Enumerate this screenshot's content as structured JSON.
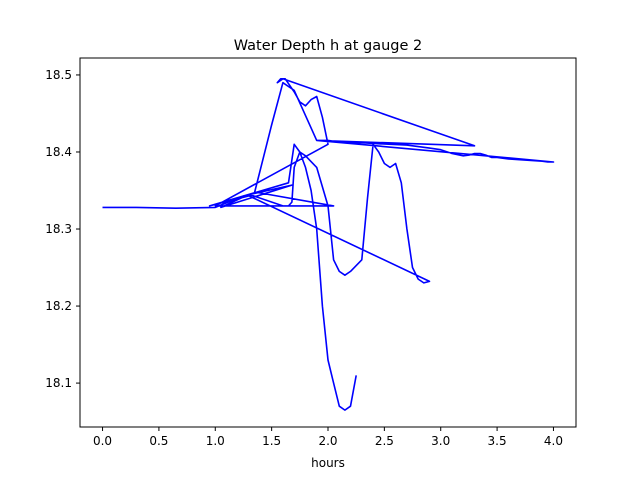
{
  "chart_data": {
    "type": "line",
    "title": "Water Depth h at gauge 2",
    "xlabel": "hours",
    "ylabel": "",
    "xlim": [
      -0.2,
      4.2
    ],
    "ylim": [
      18.043,
      18.522
    ],
    "x_ticks": [
      0.0,
      0.5,
      1.0,
      1.5,
      2.0,
      2.5,
      3.0,
      3.5,
      4.0
    ],
    "x_tick_labels": [
      "0.0",
      "0.5",
      "1.0",
      "1.5",
      "2.0",
      "2.5",
      "3.0",
      "3.5",
      "4.0"
    ],
    "y_ticks": [
      18.1,
      18.2,
      18.3,
      18.4,
      18.5
    ],
    "y_tick_labels": [
      "18.1",
      "18.2",
      "18.3",
      "18.4",
      "18.5"
    ],
    "grid": false,
    "legend": "none",
    "series": [
      {
        "color": "#0000ff",
        "x": [
          0.0,
          0.3,
          0.65,
          1.0,
          1.25,
          1.68,
          1.05,
          1.3,
          1.6,
          2.05,
          1.35,
          1.5,
          1.6,
          1.7,
          1.9,
          2.0,
          2.1,
          2.3,
          2.4,
          2.7,
          2.8,
          2.9,
          3.0,
          3.1,
          3.2,
          3.25,
          3.3,
          3.35,
          3.4,
          3.45,
          3.5,
          3.6,
          3.7,
          3.8,
          3.9,
          3.95,
          4.0,
          1.9,
          3.3,
          1.6,
          1.55,
          1.58,
          1.62,
          1.7,
          1.75,
          1.8,
          1.85,
          1.9,
          1.95,
          2.0,
          1.0,
          1.55,
          1.65,
          1.68,
          1.7,
          1.75,
          1.8,
          1.9,
          2.0,
          2.05,
          2.1,
          2.15,
          2.2,
          2.3,
          2.35,
          2.4,
          2.45,
          2.5,
          2.55,
          2.6,
          2.65,
          2.7,
          2.75,
          2.8,
          2.85,
          2.9,
          1.3,
          0.95,
          1.65,
          1.7,
          1.75,
          1.8,
          1.85,
          1.9,
          1.95,
          2.0,
          2.05,
          2.1,
          2.15,
          2.2,
          2.25
        ],
        "y": [
          18.328,
          18.328,
          18.327,
          18.328,
          18.343,
          18.357,
          18.328,
          18.345,
          18.33,
          18.33,
          18.348,
          18.435,
          18.49,
          18.48,
          18.415,
          18.415,
          18.413,
          18.412,
          18.411,
          18.409,
          18.407,
          18.405,
          18.403,
          18.398,
          18.395,
          18.396,
          18.398,
          18.398,
          18.396,
          18.393,
          18.393,
          18.391,
          18.39,
          18.389,
          18.388,
          18.387,
          18.387,
          18.415,
          18.408,
          18.495,
          18.49,
          18.495,
          18.495,
          18.478,
          18.465,
          18.46,
          18.468,
          18.472,
          18.445,
          18.41,
          18.33,
          18.33,
          18.33,
          18.335,
          18.38,
          18.4,
          18.395,
          18.38,
          18.33,
          18.26,
          18.245,
          18.24,
          18.245,
          18.26,
          18.34,
          18.41,
          18.4,
          18.385,
          18.38,
          18.385,
          18.36,
          18.3,
          18.25,
          18.235,
          18.23,
          18.232,
          18.343,
          18.33,
          18.36,
          18.41,
          18.4,
          18.38,
          18.35,
          18.3,
          18.2,
          18.13,
          18.1,
          18.07,
          18.065,
          18.07,
          18.11
        ]
      }
    ]
  }
}
